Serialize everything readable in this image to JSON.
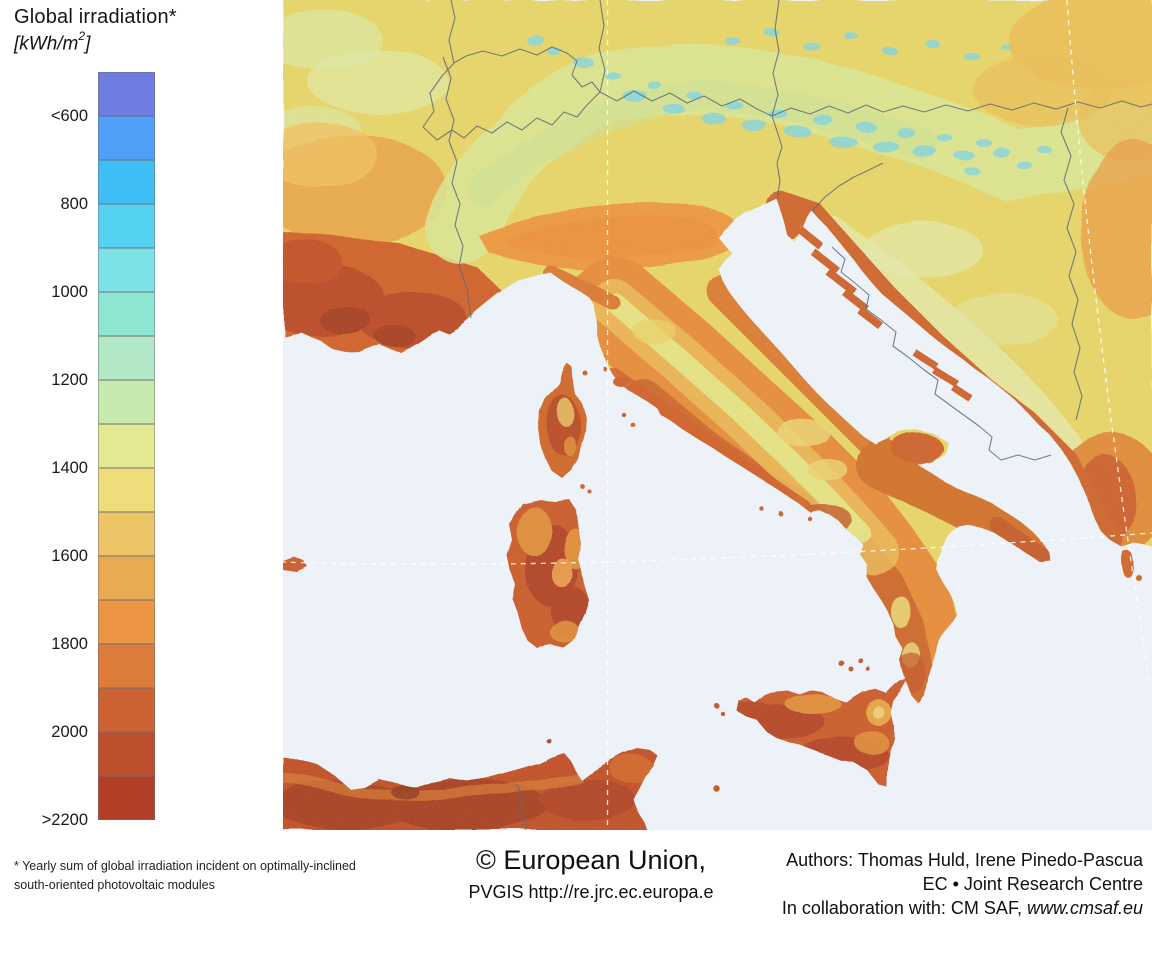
{
  "legend": {
    "title": "Global irradiation*",
    "unit_open": "[kWh/m",
    "unit_exponent": "2",
    "unit_close": "]",
    "ticks": [
      "<600",
      "800",
      "1000",
      "1200",
      "1400",
      "1600",
      "1800",
      "2000",
      ">2200"
    ],
    "colors": [
      "#6f7de2",
      "#4f9ff9",
      "#3fbdf5",
      "#55d2f2",
      "#7ce2e8",
      "#8ee6d2",
      "#b2e8c5",
      "#c8e9ae",
      "#e3e991",
      "#eedd7b",
      "#ebc566",
      "#e9ab51",
      "#ed9544",
      "#dd7b3a",
      "#cd6333",
      "#bd4f2c",
      "#b23e27"
    ]
  },
  "map": {
    "sea_color": "#edf2f9",
    "land_base_color": "#e9d96e",
    "graticule_color": "#ffffff",
    "border_color": "#5f6a78"
  },
  "footer": {
    "footnote_line1": "* Yearly sum of global irradiation incident on optimally-inclined",
    "footnote_line2": "south-oriented photovoltaic modules",
    "copyright": "© European Union,",
    "pvgis_url": "PVGIS http://re.jrc.ec.europa.e",
    "authors": "Authors: Thomas Huld, Irene Pinedo-Pascua",
    "org": "EC • Joint Research Centre",
    "collab_prefix": "In collaboration with: CM SAF, ",
    "collab_site": "www.cmsaf.eu"
  }
}
